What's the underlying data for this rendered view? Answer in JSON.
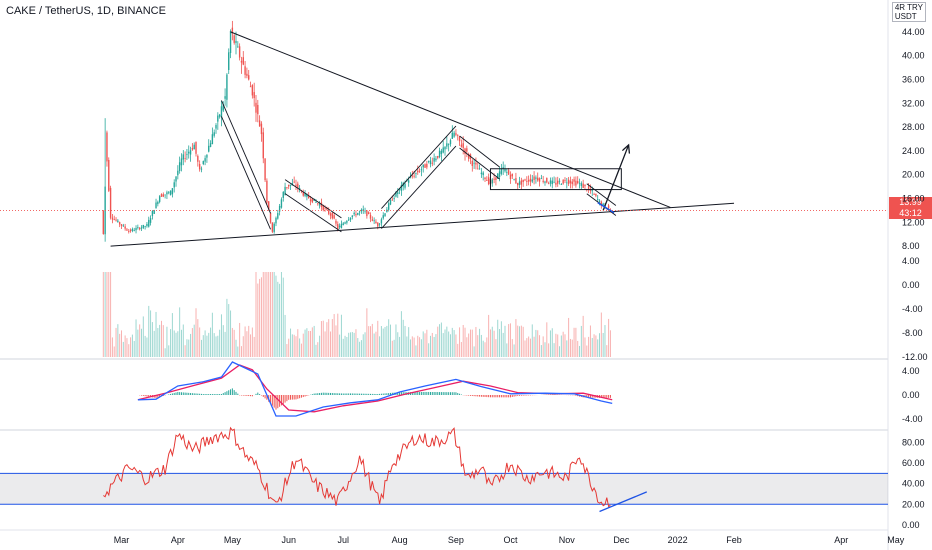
{
  "header": {
    "title": "CAKE / TetherUS, 1D, BINANCE",
    "unit_line1": "4R TRY",
    "unit_line2": "USDT"
  },
  "price_tag": {
    "value": "13.99",
    "countdown": "43:12",
    "color": "#ef5350"
  },
  "colors": {
    "up": "#26a69a",
    "down": "#ef5350",
    "macd": "#2962ff",
    "signal": "#e91e63",
    "rsi": "#e53935",
    "band": "#1e53e5",
    "drawing": "#131722"
  },
  "chart_data": [
    {
      "type": "candlestick",
      "panel": "price",
      "y_ticks": [
        "44.00",
        "40.00",
        "36.00",
        "32.00",
        "28.00",
        "24.00",
        "20.00",
        "16.00",
        "12.00",
        "8.00"
      ],
      "ylim": [
        6,
        46
      ],
      "x_ticks": [
        "Mar",
        "Apr",
        "May",
        "Jun",
        "Jul",
        "Aug",
        "Sep",
        "Oct",
        "Nov",
        "Dec",
        "2022",
        "Feb",
        "Apr",
        "May"
      ],
      "last_price": 13.99,
      "price_path": [
        [
          "2021-02-19",
          10.0
        ],
        [
          "2021-02-20",
          27.0
        ],
        [
          "2021-02-23",
          13.0
        ],
        [
          "2021-03-05",
          10.5
        ],
        [
          "2021-03-15",
          11.5
        ],
        [
          "2021-03-22",
          16.5
        ],
        [
          "2021-03-28",
          17.0
        ],
        [
          "2021-04-03",
          22.5
        ],
        [
          "2021-04-10",
          25.0
        ],
        [
          "2021-04-13",
          20.5
        ],
        [
          "2021-04-20",
          26.5
        ],
        [
          "2021-04-27",
          33.0
        ],
        [
          "2021-04-30",
          44.0
        ],
        [
          "2021-05-05",
          40.0
        ],
        [
          "2021-05-12",
          34.0
        ],
        [
          "2021-05-17",
          27.0
        ],
        [
          "2021-05-20",
          15.5
        ],
        [
          "2021-05-23",
          10.5
        ],
        [
          "2021-05-30",
          18.0
        ],
        [
          "2021-06-04",
          18.5
        ],
        [
          "2021-06-10",
          16.5
        ],
        [
          "2021-06-18",
          15.0
        ],
        [
          "2021-06-25",
          13.0
        ],
        [
          "2021-06-28",
          11.0
        ],
        [
          "2021-07-05",
          13.0
        ],
        [
          "2021-07-12",
          14.0
        ],
        [
          "2021-07-20",
          11.5
        ],
        [
          "2021-07-28",
          16.0
        ],
        [
          "2021-08-05",
          19.0
        ],
        [
          "2021-08-15",
          21.5
        ],
        [
          "2021-08-25",
          24.0
        ],
        [
          "2021-08-31",
          27.0
        ],
        [
          "2021-09-05",
          24.5
        ],
        [
          "2021-09-10",
          22.0
        ],
        [
          "2021-09-20",
          18.5
        ],
        [
          "2021-09-27",
          21.0
        ],
        [
          "2021-10-05",
          18.5
        ],
        [
          "2021-10-15",
          19.5
        ],
        [
          "2021-10-25",
          18.5
        ],
        [
          "2021-11-01",
          19.0
        ],
        [
          "2021-11-08",
          18.5
        ],
        [
          "2021-11-15",
          17.0
        ],
        [
          "2021-11-20",
          15.0
        ],
        [
          "2021-11-26",
          13.99
        ]
      ],
      "drawings": [
        {
          "kind": "trendline",
          "from": [
            "2021-02-23",
            8.0
          ],
          "to": [
            "2022-02-01",
            15.2
          ]
        },
        {
          "kind": "trendline",
          "from": [
            "2021-04-30",
            44.0
          ],
          "to": [
            "2021-12-28",
            14.5
          ]
        },
        {
          "kind": "arrow",
          "from": [
            "2021-11-21",
            14.0
          ],
          "to": [
            "2021-12-05",
            25.0
          ]
        },
        {
          "kind": "rectangle",
          "from": [
            "2021-09-20",
            21.0
          ],
          "to": [
            "2021-12-01",
            17.5
          ]
        }
      ]
    },
    {
      "type": "bar",
      "panel": "volume",
      "y_ticks": [
        "4.00",
        "0.00",
        "-4.00",
        "-8.00",
        "-12.00"
      ]
    },
    {
      "type": "line",
      "panel": "macd",
      "y_ticks": [
        "4.00",
        "0.00",
        "-4.00"
      ],
      "ylim": [
        -5.5,
        5.5
      ],
      "series": [
        {
          "key": "macd",
          "points": [
            [
              "2021-03-10",
              -0.8
            ],
            [
              "2021-03-20",
              -0.7
            ],
            [
              "2021-04-01",
              1.5
            ],
            [
              "2021-04-15",
              2.2
            ],
            [
              "2021-04-25",
              3.0
            ],
            [
              "2021-05-01",
              5.5
            ],
            [
              "2021-05-08",
              4.5
            ],
            [
              "2021-05-15",
              3.5
            ],
            [
              "2021-05-25",
              -3.5
            ],
            [
              "2021-06-05",
              -3.5
            ],
            [
              "2021-06-20",
              -2.0
            ],
            [
              "2021-07-05",
              -1.3
            ],
            [
              "2021-07-20",
              -0.8
            ],
            [
              "2021-08-01",
              0.5
            ],
            [
              "2021-08-15",
              1.5
            ],
            [
              "2021-09-01",
              2.6
            ],
            [
              "2021-09-15",
              1.4
            ],
            [
              "2021-10-01",
              0.2
            ],
            [
              "2021-10-20",
              0.3
            ],
            [
              "2021-11-05",
              0.2
            ],
            [
              "2021-11-20",
              -1.0
            ],
            [
              "2021-11-26",
              -1.4
            ]
          ]
        },
        {
          "key": "signal",
          "points": [
            [
              "2021-03-10",
              -0.8
            ],
            [
              "2021-03-25",
              0.3
            ],
            [
              "2021-04-10",
              1.6
            ],
            [
              "2021-04-25",
              2.8
            ],
            [
              "2021-05-05",
              5.0
            ],
            [
              "2021-05-12",
              4.2
            ],
            [
              "2021-05-20",
              1.0
            ],
            [
              "2021-06-01",
              -2.5
            ],
            [
              "2021-06-15",
              -2.8
            ],
            [
              "2021-07-01",
              -1.8
            ],
            [
              "2021-07-20",
              -1.0
            ],
            [
              "2021-08-05",
              0.2
            ],
            [
              "2021-08-20",
              1.2
            ],
            [
              "2021-09-05",
              2.3
            ],
            [
              "2021-09-20",
              1.5
            ],
            [
              "2021-10-05",
              0.4
            ],
            [
              "2021-10-25",
              0.2
            ],
            [
              "2021-11-10",
              0.3
            ],
            [
              "2021-11-26",
              -0.8
            ]
          ]
        }
      ]
    },
    {
      "type": "line",
      "panel": "rsi",
      "y_ticks": [
        "80.00",
        "60.00",
        "40.00",
        "20.00",
        "0.00"
      ],
      "ylim": [
        -3,
        92
      ],
      "bands": [
        50,
        20
      ],
      "series": [
        {
          "key": "rsi",
          "points": [
            [
              "2021-02-19",
              30
            ],
            [
              "2021-02-22",
              35
            ],
            [
              "2021-03-05",
              55
            ],
            [
              "2021-03-15",
              45
            ],
            [
              "2021-03-25",
              55
            ],
            [
              "2021-04-01",
              88
            ],
            [
              "2021-04-10",
              72
            ],
            [
              "2021-04-20",
              85
            ],
            [
              "2021-05-01",
              90
            ],
            [
              "2021-05-08",
              68
            ],
            [
              "2021-05-15",
              55
            ],
            [
              "2021-05-25",
              17
            ],
            [
              "2021-06-05",
              65
            ],
            [
              "2021-06-15",
              40
            ],
            [
              "2021-06-28",
              22
            ],
            [
              "2021-07-10",
              65
            ],
            [
              "2021-07-21",
              20
            ],
            [
              "2021-07-28",
              60
            ],
            [
              "2021-08-10",
              85
            ],
            [
              "2021-08-20",
              80
            ],
            [
              "2021-08-31",
              88
            ],
            [
              "2021-09-07",
              45
            ],
            [
              "2021-09-15",
              55
            ],
            [
              "2021-09-20",
              35
            ],
            [
              "2021-10-01",
              60
            ],
            [
              "2021-10-10",
              45
            ],
            [
              "2021-10-20",
              52
            ],
            [
              "2021-11-01",
              45
            ],
            [
              "2021-11-08",
              70
            ],
            [
              "2021-11-12",
              50
            ],
            [
              "2021-11-20",
              22
            ],
            [
              "2021-11-26",
              25
            ]
          ]
        }
      ],
      "drawings": [
        {
          "kind": "trendline",
          "from": [
            "2021-11-19",
            13.0
          ],
          "to": [
            "2021-12-15",
            32.0
          ]
        }
      ]
    }
  ]
}
